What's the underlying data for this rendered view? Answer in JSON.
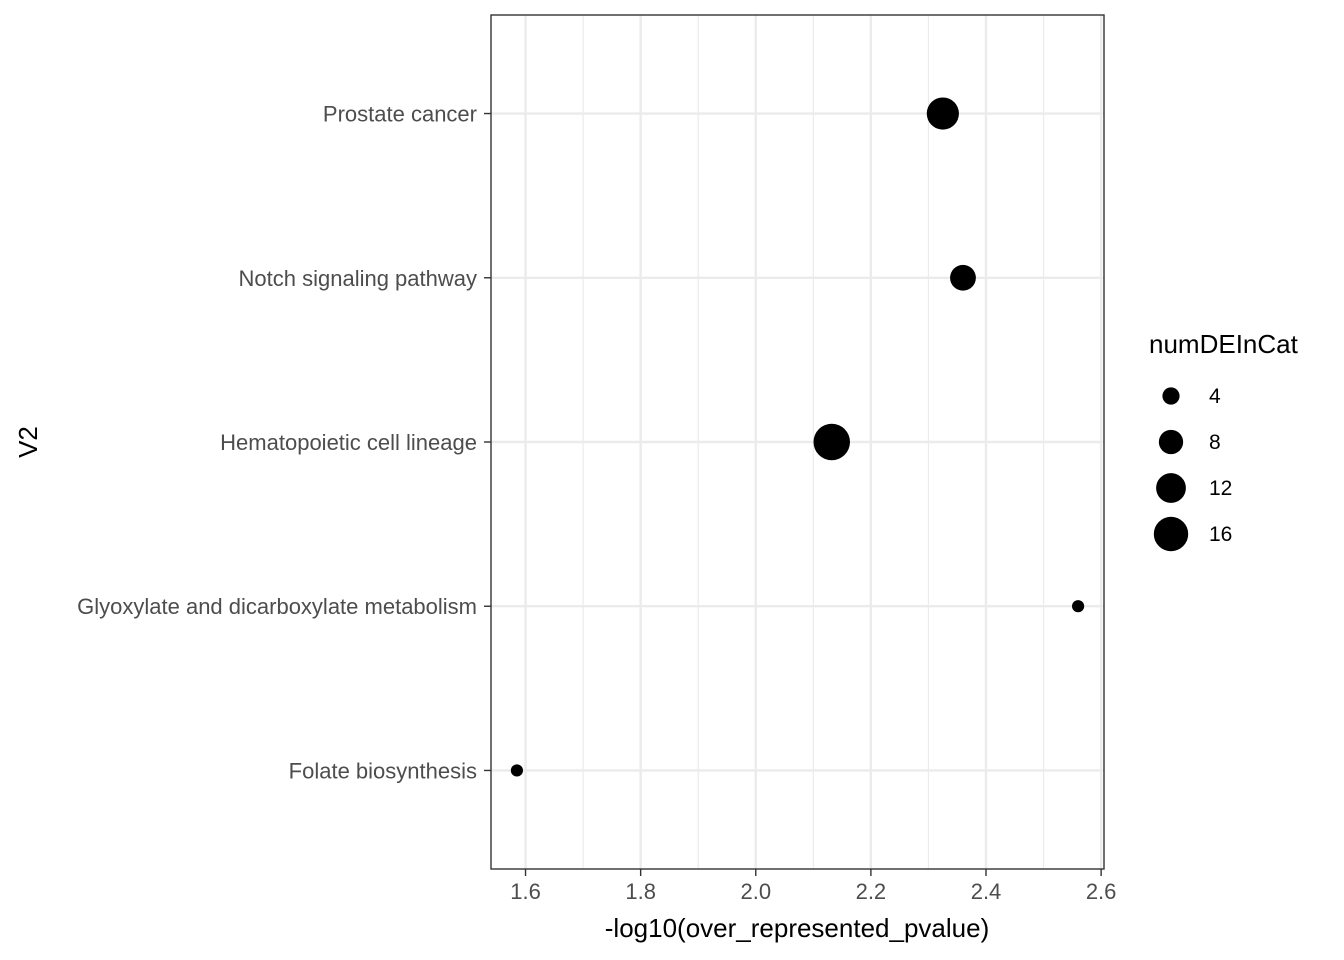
{
  "chart_data": {
    "type": "scatter",
    "xlabel": "-log10(over_represented_pvalue)",
    "ylabel": "V2",
    "xlim": [
      1.54,
      2.605
    ],
    "x_ticks": [
      1.6,
      1.8,
      2.0,
      2.2,
      2.4,
      2.6
    ],
    "x_tick_labels": [
      "1.6",
      "1.8",
      "2.0",
      "2.2",
      "2.4",
      "2.6"
    ],
    "categories": [
      "Folate biosynthesis",
      "Glyoxylate and dicarboxylate metabolism",
      "Hematopoietic cell lineage",
      "Notch signaling pathway",
      "Prostate cancer"
    ],
    "points": [
      {
        "category": "Prostate cancer",
        "x": 2.325,
        "size": 14
      },
      {
        "category": "Notch signaling pathway",
        "x": 2.36,
        "size": 9
      },
      {
        "category": "Hematopoietic cell lineage",
        "x": 2.132,
        "size": 18
      },
      {
        "category": "Glyoxylate and dicarboxylate metabolism",
        "x": 2.56,
        "size": 2
      },
      {
        "category": "Folate biosynthesis",
        "x": 1.585,
        "size": 2
      }
    ],
    "size_legend": {
      "title": "numDEInCat",
      "values": [
        4,
        8,
        12,
        16
      ],
      "labels": [
        "4",
        "8",
        "12",
        "16"
      ]
    },
    "grid": true,
    "legend_position": "right",
    "colors": {
      "point": "#000000",
      "grid": "#ebebeb",
      "panel_border": "#333333",
      "tick_label": "#4d4d4d"
    }
  }
}
